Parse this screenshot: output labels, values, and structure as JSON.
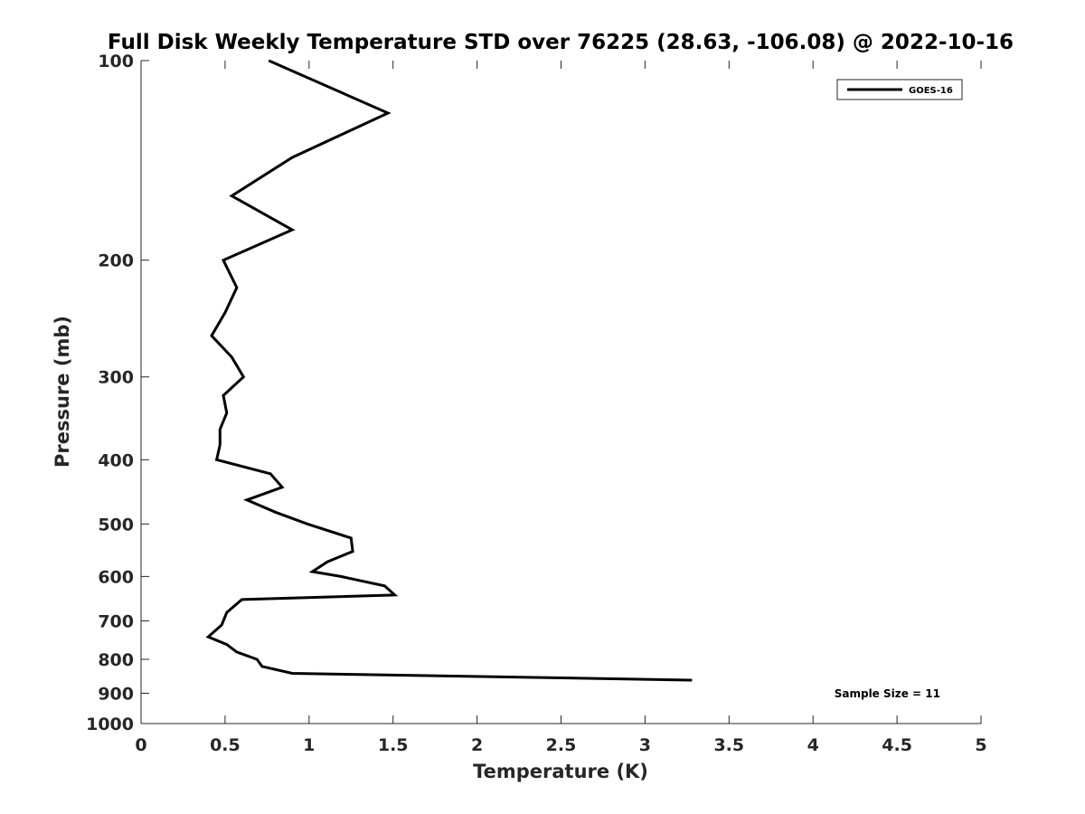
{
  "chart_data": {
    "type": "line",
    "title": "Full Disk Weekly Temperature STD over 76225 (28.63, -106.08) @ 2022-10-16",
    "xlabel": "Temperature (K)",
    "ylabel": "Pressure (mb)",
    "xlim": [
      0,
      5
    ],
    "ylim": [
      100,
      1000
    ],
    "yscale": "log",
    "yreversed": true,
    "xticks": [
      0,
      0.5,
      1,
      1.5,
      2,
      2.5,
      3,
      3.5,
      4,
      4.5,
      5
    ],
    "xtick_labels": [
      "0",
      "0.5",
      "1",
      "1.5",
      "2",
      "2.5",
      "3",
      "3.5",
      "4",
      "4.5",
      "5"
    ],
    "yticks": [
      100,
      200,
      300,
      400,
      500,
      600,
      700,
      800,
      900,
      1000
    ],
    "ytick_labels": [
      "100",
      "200",
      "300",
      "400",
      "500",
      "600",
      "700",
      "800",
      "900",
      "1000"
    ],
    "grid": false,
    "legend_position": "top-right",
    "series": [
      {
        "name": "GOES-16",
        "color": "#000000",
        "points": [
          {
            "x": 0.76,
            "y": 100
          },
          {
            "x": 1.47,
            "y": 120
          },
          {
            "x": 0.9,
            "y": 140
          },
          {
            "x": 0.54,
            "y": 160
          },
          {
            "x": 0.9,
            "y": 180
          },
          {
            "x": 0.49,
            "y": 200
          },
          {
            "x": 0.57,
            "y": 220
          },
          {
            "x": 0.5,
            "y": 240
          },
          {
            "x": 0.42,
            "y": 260
          },
          {
            "x": 0.54,
            "y": 280
          },
          {
            "x": 0.61,
            "y": 300
          },
          {
            "x": 0.49,
            "y": 320
          },
          {
            "x": 0.51,
            "y": 340
          },
          {
            "x": 0.47,
            "y": 360
          },
          {
            "x": 0.47,
            "y": 380
          },
          {
            "x": 0.45,
            "y": 400
          },
          {
            "x": 0.77,
            "y": 420
          },
          {
            "x": 0.84,
            "y": 440
          },
          {
            "x": 0.63,
            "y": 460
          },
          {
            "x": 0.8,
            "y": 480
          },
          {
            "x": 0.99,
            "y": 500
          },
          {
            "x": 1.25,
            "y": 525
          },
          {
            "x": 1.26,
            "y": 550
          },
          {
            "x": 1.11,
            "y": 570
          },
          {
            "x": 1.02,
            "y": 590
          },
          {
            "x": 1.19,
            "y": 600
          },
          {
            "x": 1.45,
            "y": 620
          },
          {
            "x": 1.51,
            "y": 640
          },
          {
            "x": 0.6,
            "y": 650
          },
          {
            "x": 0.51,
            "y": 680
          },
          {
            "x": 0.48,
            "y": 710
          },
          {
            "x": 0.4,
            "y": 740
          },
          {
            "x": 0.51,
            "y": 760
          },
          {
            "x": 0.57,
            "y": 780
          },
          {
            "x": 0.69,
            "y": 800
          },
          {
            "x": 0.72,
            "y": 820
          },
          {
            "x": 0.9,
            "y": 840
          },
          {
            "x": 3.28,
            "y": 860
          }
        ]
      }
    ],
    "annotations": [
      {
        "text": "Sample Size = 11",
        "position": "bottom-right"
      }
    ]
  }
}
